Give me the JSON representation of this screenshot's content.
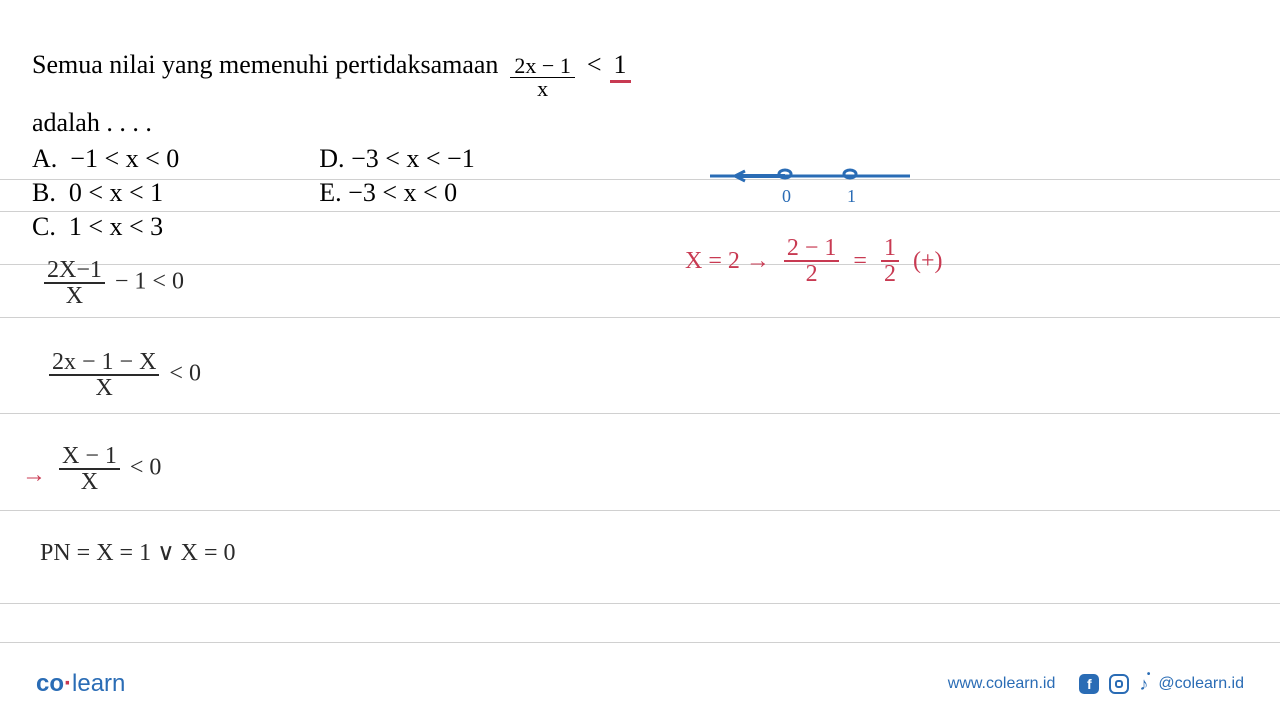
{
  "colors": {
    "red": "#c83a52",
    "blue": "#2a6cb5",
    "text": "#000000",
    "ruled": "#d0d0d0",
    "hand_black": "#2a2a2a",
    "bg": "#ffffff"
  },
  "ruled_lines_y": [
    179,
    211,
    264,
    317,
    413,
    510,
    603,
    642
  ],
  "question": {
    "prefix": "Semua nilai yang memenuhi pertidaksamaan",
    "frac_num": "2x − 1",
    "frac_den": "x",
    "ineq": "<",
    "rhs": "1",
    "adalah": "adalah . . . ."
  },
  "options": {
    "A": "−1 < x < 0",
    "B": "0 < x < 1",
    "C": "1 < x < 3",
    "D": "−3 < x < −1",
    "E": "−3 < x < 0"
  },
  "work": {
    "step1_num": "2X−1",
    "step1_den": "X",
    "step1_rest": "− 1 < 0",
    "step2_num": "2x − 1 − X",
    "step2_den": "X",
    "step2_rest": "< 0",
    "step3_arrow": "→",
    "step3_num": "X − 1",
    "step3_den": "X",
    "step3_rest": "< 0",
    "pn": "PN  =  X = 1   ∨  X = 0",
    "test_x": "X = 2  →",
    "test_frac_num": "2 − 1",
    "test_frac_den": "2",
    "test_eq": "=",
    "test_res_num": "1",
    "test_res_den": "2",
    "test_sign": "(+)"
  },
  "numberline": {
    "labels": {
      "zero": "0",
      "one": "1"
    },
    "line_color": "#2a6cb5",
    "label_color": "#2a6cb5"
  },
  "footer": {
    "logo_co": "co",
    "logo_learn": "learn",
    "url": "www.colearn.id",
    "handle": "@colearn.id"
  }
}
